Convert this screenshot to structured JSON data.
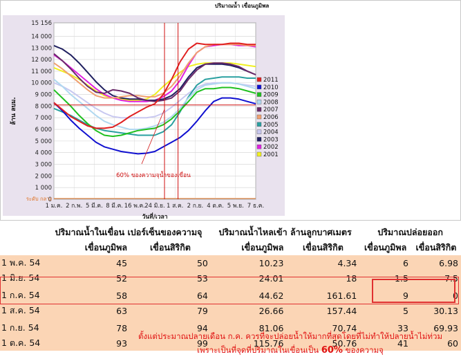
{
  "chart_data": {
    "type": "line",
    "title": "ปริมาณน้ำ เขื่อนภูมิพล",
    "ylabel": "ล้าน ลบม.",
    "xlabel": "วันที่/เวลา",
    "ylim": [
      0,
      15156
    ],
    "yticks": [
      "0",
      "1 000",
      "2 000",
      "3 000",
      "4 000",
      "5 000",
      "6 000",
      "7 000",
      "8 000",
      "9 000",
      "10 000",
      "11 000",
      "12 000",
      "13 000",
      "14 000",
      "15 156"
    ],
    "ytick_values": [
      0,
      1000,
      2000,
      3000,
      4000,
      5000,
      6000,
      7000,
      8000,
      9000,
      10000,
      11000,
      12000,
      13000,
      14000,
      15156
    ],
    "bottom_label": "ระดับ กลาง",
    "xticks": [
      "1 ม.ค.",
      "2 ก.พ.",
      "5 มี.ค.",
      "8 มี.ค.",
      "16 พ.ค.",
      "24 มิ.ย.",
      "1 ส.ค.",
      "2 ก.ย.",
      "4 ต.ค.",
      "5 พ.ย.",
      "7 ธ.ค."
    ],
    "reference_line": 8100,
    "vlines": [
      "1 ก.ค.",
      "1 ส.ค."
    ],
    "annotation": "60% ของความจุน้ำของเขื่อน",
    "legend_position": "right",
    "x": [
      0,
      1,
      2,
      3,
      4,
      5,
      6,
      7,
      8,
      9,
      10,
      11,
      12,
      13,
      14,
      15,
      16,
      17,
      18,
      19,
      20,
      21,
      22,
      23,
      24
    ],
    "series": [
      {
        "name": "2011",
        "color": "#e02020",
        "values": [
          8300,
          7700,
          7100,
          6700,
          6300,
          6100,
          6100,
          6200,
          6600,
          7100,
          7500,
          7900,
          8200,
          9000,
          10300,
          11800,
          12900,
          13400,
          13300,
          13300,
          13300,
          13400,
          13400,
          13300,
          13300
        ]
      },
      {
        "name": "2010",
        "color": "#1010d0",
        "values": [
          8300,
          7600,
          6800,
          6100,
          5500,
          4900,
          4500,
          4300,
          4100,
          4000,
          3900,
          3950,
          4100,
          4500,
          4900,
          5300,
          5900,
          6700,
          7600,
          8400,
          8700,
          8700,
          8600,
          8400,
          8200
        ]
      },
      {
        "name": "2009",
        "color": "#20c020",
        "values": [
          9400,
          8700,
          8000,
          7200,
          6500,
          5900,
          5500,
          5400,
          5500,
          5700,
          5900,
          6000,
          6100,
          6400,
          6900,
          7600,
          8400,
          9200,
          9500,
          9500,
          9600,
          9600,
          9500,
          9300,
          9100
        ]
      },
      {
        "name": "2008",
        "color": "#b0d8f0",
        "values": [
          10300,
          9700,
          9000,
          8400,
          7800,
          7200,
          6700,
          6400,
          6200,
          6000,
          6000,
          6100,
          6300,
          6600,
          7100,
          7800,
          8700,
          9400,
          9800,
          9900,
          10000,
          10000,
          9900,
          9700,
          9500
        ]
      },
      {
        "name": "2007",
        "color": "#6a2a6a",
        "values": [
          12500,
          11900,
          11200,
          10400,
          9700,
          9200,
          9100,
          9400,
          9300,
          9100,
          8700,
          8500,
          8400,
          8500,
          8700,
          9300,
          10300,
          11100,
          11600,
          11700,
          11700,
          11600,
          11400,
          11000,
          10700
        ]
      },
      {
        "name": "2006",
        "color": "#f0a070",
        "values": [
          11700,
          11200,
          10600,
          10000,
          9400,
          8900,
          8700,
          8700,
          8800,
          8900,
          8900,
          8800,
          8800,
          9100,
          9700,
          10600,
          11700,
          12600,
          13100,
          13300,
          13300,
          13300,
          13300,
          13200,
          13200
        ]
      },
      {
        "name": "2005",
        "color": "#2aa0a0",
        "values": [
          7800,
          7500,
          7200,
          6800,
          6400,
          6100,
          5900,
          5800,
          5700,
          5600,
          5500,
          5500,
          5500,
          5800,
          6400,
          7500,
          8800,
          9800,
          10300,
          10400,
          10500,
          10500,
          10500,
          10400,
          10400
        ]
      },
      {
        "name": "2004",
        "color": "#c8c8f0",
        "values": [
          10000,
          9700,
          9300,
          8800,
          8300,
          7800,
          7400,
          7100,
          7000,
          7000,
          7000,
          7000,
          7100,
          7400,
          7900,
          8500,
          9100,
          9600,
          9900,
          10000,
          10000,
          10000,
          9900,
          9800,
          9700
        ]
      },
      {
        "name": "2003",
        "color": "#202060",
        "values": [
          13200,
          12900,
          12400,
          11700,
          10900,
          10100,
          9400,
          8900,
          8700,
          8600,
          8600,
          8500,
          8500,
          8600,
          8900,
          9500,
          10500,
          11300,
          11600,
          11600,
          11600,
          11500,
          11300,
          11000,
          10700
        ]
      },
      {
        "name": "2002",
        "color": "#e020e0",
        "values": [
          12400,
          11900,
          11300,
          10700,
          10100,
          9500,
          9000,
          8700,
          8500,
          8400,
          8400,
          8400,
          8500,
          8800,
          9300,
          10200,
          11500,
          12600,
          13100,
          13200,
          13300,
          13300,
          13200,
          13200,
          13100
        ]
      },
      {
        "name": "2001",
        "color": "#f0f020",
        "values": [
          11300,
          11000,
          10700,
          10300,
          9800,
          9300,
          8900,
          8700,
          8600,
          8500,
          8500,
          8600,
          9000,
          9700,
          10300,
          10900,
          11400,
          11600,
          11700,
          11700,
          11700,
          11700,
          11600,
          11500,
          11400
        ]
      }
    ]
  },
  "table": {
    "headers_top": [
      "ปริมาณน้ำในเขื่อน เปอร์เซ็นของความจุ",
      "ปริมาณน้ำไหลเข้า ล้านลูกบาศเมตร",
      "ปริมาณปล่อยออก"
    ],
    "headers_sub": [
      "เขื่อนภูมิพล",
      "เขื่อนสิริกิต",
      "เขื่อนภูมิพล",
      "เขื่อนสิริกิต",
      "เขื่อนภูมิพล",
      "เขื่อนสิริกิต"
    ],
    "rows": [
      {
        "date": "1 พ.ค. 54",
        "c1": "45",
        "c2": "50",
        "c3": "10.23",
        "c4": "4.34",
        "c5": "6",
        "c6": "6.98"
      },
      {
        "date": "1 มิ.ย. 54",
        "c1": "52",
        "c2": "53",
        "c3": "24.01",
        "c4": "18",
        "c5": "1.5",
        "c6": "7.5"
      },
      {
        "date": "1 ก.ค. 54",
        "c1": "58",
        "c2": "64",
        "c3": "44.62",
        "c4": "161.61",
        "c5": "9",
        "c6": "0"
      },
      {
        "date": "1 ส.ค. 54",
        "c1": "63",
        "c2": "79",
        "c3": "26.66",
        "c4": "157.44",
        "c5": "5",
        "c6": "30.13"
      },
      {
        "date": "1 ก.ย. 54",
        "c1": "78",
        "c2": "94",
        "c3": "81.06",
        "c4": "70.74",
        "c5": "33",
        "c6": "69.93"
      },
      {
        "date": "1 ต.ค. 54",
        "c1": "93",
        "c2": "99",
        "c3": "115.76",
        "c4": "50.76",
        "c5": "41",
        "c6": "60"
      }
    ]
  },
  "note": {
    "line1": "ตั้งแต่ประมาณปลายเดือน ก.ค. ควรที่จะปล่อยน้ำให้มากที่สุดโดยที่ไม่ทำให้ปลายน้ำไม่ท่วม",
    "line2_prefix": "เพราะเป็นที่จุดที่ปริมาณในเขื่อนเป็น",
    "line2_pct": "60%",
    "line2_suffix": "ของความจุ"
  }
}
